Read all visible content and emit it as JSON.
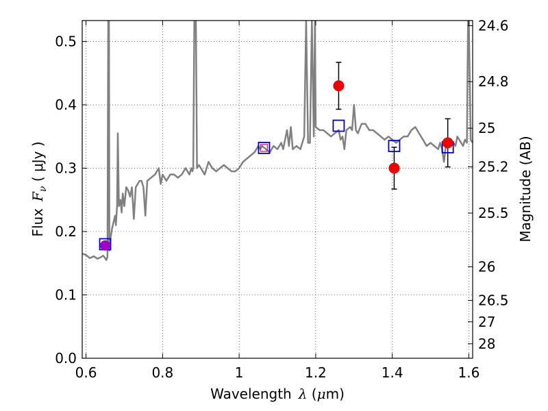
{
  "chart_data": {
    "type": "scatter",
    "xlabel": {
      "prefix": "Wavelength",
      "symbol": "λ",
      "unit_open": " (",
      "unit_mu": "μ",
      "unit_rest": "m)"
    },
    "ylabel": {
      "prefix": "Flux",
      "symbol": "F",
      "subscript": "ν",
      "unit": " ( μJy )"
    },
    "ylabel_right": "Magnitude (AB)",
    "xlim": [
      0.59,
      1.61
    ],
    "ylim": [
      0.0,
      0.533
    ],
    "grid": true,
    "x_ticks": [
      {
        "value": 0.6,
        "label": "0.6"
      },
      {
        "value": 0.8,
        "label": "0.8"
      },
      {
        "value": 1.0,
        "label": "1"
      },
      {
        "value": 1.2,
        "label": "1.2"
      },
      {
        "value": 1.4,
        "label": "1.4"
      },
      {
        "value": 1.6,
        "label": "1.6"
      }
    ],
    "y_ticks": [
      {
        "value": 0.0,
        "label": "0.0"
      },
      {
        "value": 0.1,
        "label": "0.1"
      },
      {
        "value": 0.2,
        "label": "0.2"
      },
      {
        "value": 0.3,
        "label": "0.3"
      },
      {
        "value": 0.4,
        "label": "0.4"
      },
      {
        "value": 0.5,
        "label": "0.5"
      }
    ],
    "mag_ticks": [
      {
        "value": 24.6,
        "label": "24.6"
      },
      {
        "value": 24.8,
        "label": "24.8"
      },
      {
        "value": 25.0,
        "label": "25"
      },
      {
        "value": 25.2,
        "label": "25.2"
      },
      {
        "value": 25.5,
        "label": "25.5"
      },
      {
        "value": 26.0,
        "label": "26"
      },
      {
        "value": 26.5,
        "label": "26.5"
      },
      {
        "value": 27.0,
        "label": "27"
      },
      {
        "value": 28.0,
        "label": "28"
      }
    ],
    "series": [
      {
        "kind": "model_spectrum",
        "color": "#808080",
        "points": [
          [
            0.59,
            0.165
          ],
          [
            0.6,
            0.163
          ],
          [
            0.61,
            0.158
          ],
          [
            0.62,
            0.161
          ],
          [
            0.63,
            0.157
          ],
          [
            0.64,
            0.16
          ],
          [
            0.645,
            0.162
          ],
          [
            0.65,
            0.158
          ],
          [
            0.653,
            0.155
          ],
          [
            0.656,
            0.16
          ],
          [
            0.658,
            0.533
          ],
          [
            0.66,
            0.533
          ],
          [
            0.661,
            0.17
          ],
          [
            0.664,
            0.19
          ],
          [
            0.668,
            0.205
          ],
          [
            0.672,
            0.215
          ],
          [
            0.676,
            0.225
          ],
          [
            0.678,
            0.21
          ],
          [
            0.681,
            0.24
          ],
          [
            0.683,
            0.355
          ],
          [
            0.686,
            0.24
          ],
          [
            0.69,
            0.25
          ],
          [
            0.693,
            0.23
          ],
          [
            0.696,
            0.26
          ],
          [
            0.7,
            0.24
          ],
          [
            0.705,
            0.27
          ],
          [
            0.71,
            0.265
          ],
          [
            0.715,
            0.255
          ],
          [
            0.72,
            0.27
          ],
          [
            0.725,
            0.22
          ],
          [
            0.73,
            0.27
          ],
          [
            0.735,
            0.275
          ],
          [
            0.74,
            0.28
          ],
          [
            0.745,
            0.28
          ],
          [
            0.75,
            0.27
          ],
          [
            0.755,
            0.225
          ],
          [
            0.76,
            0.28
          ],
          [
            0.77,
            0.285
          ],
          [
            0.78,
            0.29
          ],
          [
            0.79,
            0.3
          ],
          [
            0.795,
            0.275
          ],
          [
            0.8,
            0.29
          ],
          [
            0.81,
            0.28
          ],
          [
            0.82,
            0.29
          ],
          [
            0.83,
            0.29
          ],
          [
            0.84,
            0.285
          ],
          [
            0.85,
            0.29
          ],
          [
            0.86,
            0.3
          ],
          [
            0.87,
            0.29
          ],
          [
            0.875,
            0.3
          ],
          [
            0.878,
            0.295
          ],
          [
            0.88,
            0.3
          ],
          [
            0.883,
            0.533
          ],
          [
            0.887,
            0.533
          ],
          [
            0.89,
            0.3
          ],
          [
            0.895,
            0.305
          ],
          [
            0.9,
            0.3
          ],
          [
            0.91,
            0.29
          ],
          [
            0.92,
            0.31
          ],
          [
            0.93,
            0.3
          ],
          [
            0.94,
            0.295
          ],
          [
            0.95,
            0.3
          ],
          [
            0.96,
            0.305
          ],
          [
            0.97,
            0.3
          ],
          [
            0.98,
            0.295
          ],
          [
            0.99,
            0.295
          ],
          [
            1.0,
            0.3
          ],
          [
            1.01,
            0.31
          ],
          [
            1.02,
            0.315
          ],
          [
            1.03,
            0.32
          ],
          [
            1.04,
            0.325
          ],
          [
            1.045,
            0.33
          ],
          [
            1.05,
            0.335
          ],
          [
            1.055,
            0.33
          ],
          [
            1.06,
            0.335
          ],
          [
            1.07,
            0.33
          ],
          [
            1.08,
            0.325
          ],
          [
            1.09,
            0.335
          ],
          [
            1.1,
            0.33
          ],
          [
            1.11,
            0.34
          ],
          [
            1.115,
            0.33
          ],
          [
            1.12,
            0.345
          ],
          [
            1.125,
            0.36
          ],
          [
            1.13,
            0.335
          ],
          [
            1.135,
            0.365
          ],
          [
            1.14,
            0.33
          ],
          [
            1.15,
            0.335
          ],
          [
            1.16,
            0.33
          ],
          [
            1.165,
            0.34
          ],
          [
            1.17,
            0.35
          ],
          [
            1.175,
            0.533
          ],
          [
            1.18,
            0.34
          ],
          [
            1.185,
            0.34
          ],
          [
            1.19,
            0.533
          ],
          [
            1.195,
            0.35
          ],
          [
            1.198,
            0.533
          ],
          [
            1.2,
            0.365
          ],
          [
            1.21,
            0.36
          ],
          [
            1.22,
            0.36
          ],
          [
            1.23,
            0.355
          ],
          [
            1.24,
            0.35
          ],
          [
            1.25,
            0.355
          ],
          [
            1.26,
            0.36
          ],
          [
            1.265,
            0.345
          ],
          [
            1.27,
            0.35
          ],
          [
            1.275,
            0.33
          ],
          [
            1.28,
            0.36
          ],
          [
            1.29,
            0.365
          ],
          [
            1.295,
            0.36
          ],
          [
            1.3,
            0.4
          ],
          [
            1.305,
            0.36
          ],
          [
            1.31,
            0.355
          ],
          [
            1.32,
            0.37
          ],
          [
            1.33,
            0.37
          ],
          [
            1.34,
            0.36
          ],
          [
            1.35,
            0.36
          ],
          [
            1.36,
            0.355
          ],
          [
            1.37,
            0.35
          ],
          [
            1.38,
            0.345
          ],
          [
            1.39,
            0.35
          ],
          [
            1.4,
            0.345
          ],
          [
            1.41,
            0.34
          ],
          [
            1.42,
            0.345
          ],
          [
            1.43,
            0.35
          ],
          [
            1.44,
            0.35
          ],
          [
            1.45,
            0.36
          ],
          [
            1.46,
            0.365
          ],
          [
            1.47,
            0.355
          ],
          [
            1.48,
            0.345
          ],
          [
            1.49,
            0.335
          ],
          [
            1.5,
            0.34
          ],
          [
            1.51,
            0.335
          ],
          [
            1.52,
            0.33
          ],
          [
            1.525,
            0.34
          ],
          [
            1.53,
            0.33
          ],
          [
            1.535,
            0.31
          ],
          [
            1.54,
            0.335
          ],
          [
            1.55,
            0.34
          ],
          [
            1.56,
            0.34
          ],
          [
            1.565,
            0.335
          ],
          [
            1.57,
            0.35
          ],
          [
            1.575,
            0.345
          ],
          [
            1.58,
            0.34
          ],
          [
            1.585,
            0.335
          ],
          [
            1.59,
            0.345
          ],
          [
            1.595,
            0.34
          ],
          [
            1.598,
            0.533
          ],
          [
            1.6,
            0.533
          ],
          [
            1.605,
            0.345
          ],
          [
            1.61,
            0.34
          ]
        ]
      },
      {
        "kind": "observed",
        "color": "#ee0000",
        "points": [
          {
            "x": 1.26,
            "y": 0.43,
            "err": 0.037
          },
          {
            "x": 1.405,
            "y": 0.3,
            "err": 0.033
          },
          {
            "x": 1.545,
            "y": 0.34,
            "err": 0.038
          }
        ]
      },
      {
        "kind": "observed_purple",
        "color": "#a000c8",
        "points": [
          {
            "x": 0.65,
            "y": 0.178
          }
        ]
      },
      {
        "kind": "model_band",
        "color": "#0000cc",
        "points": [
          {
            "x": 0.65,
            "y": 0.18
          },
          {
            "x": 1.065,
            "y": 0.332
          },
          {
            "x": 1.26,
            "y": 0.367
          },
          {
            "x": 1.405,
            "y": 0.335
          },
          {
            "x": 1.545,
            "y": 0.333
          }
        ]
      },
      {
        "kind": "small_pink_square",
        "color": "#d0208a",
        "points": [
          {
            "x": 1.065,
            "y": 0.332
          }
        ]
      }
    ]
  }
}
